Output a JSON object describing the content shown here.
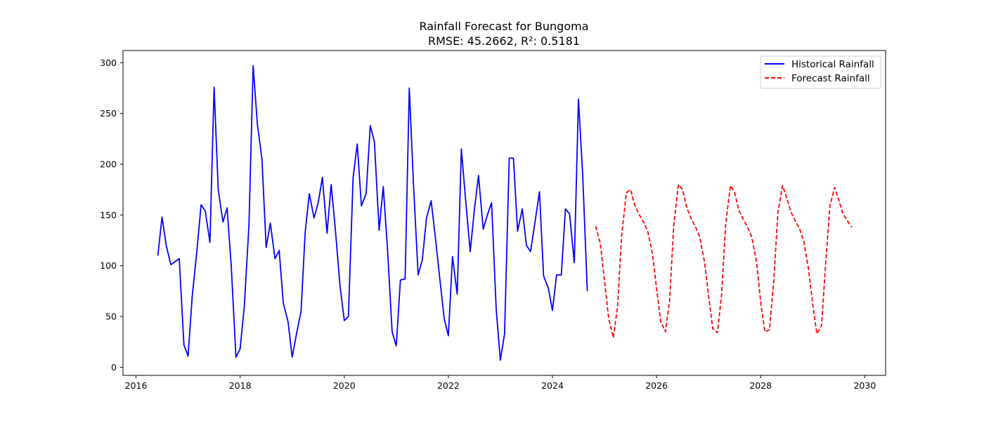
{
  "chart_data": {
    "type": "line",
    "title": "Rainfall Forecast for Bungoma",
    "subtitle": "RMSE: 45.2662, R²: 0.5181",
    "xlabel": "",
    "ylabel": "",
    "xlim": [
      2015.75,
      2030.4
    ],
    "ylim": [
      -8,
      312
    ],
    "x_ticks": [
      "2016",
      "2018",
      "2020",
      "2022",
      "2024",
      "2026",
      "2028",
      "2030"
    ],
    "y_ticks": [
      "0",
      "50",
      "100",
      "150",
      "200",
      "250",
      "300"
    ],
    "grid": false,
    "legend_position": "top-right",
    "series": [
      {
        "name": "Historical Rainfall",
        "color": "#0000ff",
        "style": "solid",
        "x": [
          2016.42,
          2016.5,
          2016.58,
          2016.67,
          2016.75,
          2016.83,
          2016.92,
          2017.0,
          2017.08,
          2017.17,
          2017.25,
          2017.33,
          2017.42,
          2017.5,
          2017.58,
          2017.67,
          2017.75,
          2017.83,
          2017.92,
          2018.0,
          2018.08,
          2018.17,
          2018.25,
          2018.33,
          2018.42,
          2018.5,
          2018.58,
          2018.67,
          2018.75,
          2018.83,
          2018.92,
          2019.0,
          2019.08,
          2019.17,
          2019.25,
          2019.33,
          2019.42,
          2019.5,
          2019.58,
          2019.67,
          2019.75,
          2019.83,
          2019.92,
          2020.0,
          2020.08,
          2020.17,
          2020.25,
          2020.33,
          2020.42,
          2020.5,
          2020.58,
          2020.67,
          2020.75,
          2020.83,
          2020.92,
          2021.0,
          2021.08,
          2021.17,
          2021.25,
          2021.33,
          2021.42,
          2021.5,
          2021.58,
          2021.67,
          2021.75,
          2021.83,
          2021.92,
          2022.0,
          2022.08,
          2022.17,
          2022.25,
          2022.33,
          2022.42,
          2022.5,
          2022.58,
          2022.67,
          2022.75,
          2022.83,
          2022.92,
          2023.0,
          2023.08,
          2023.17,
          2023.25,
          2023.33,
          2023.42,
          2023.5,
          2023.58,
          2023.67,
          2023.75,
          2023.83,
          2023.92,
          2024.0,
          2024.08,
          2024.17,
          2024.25,
          2024.33,
          2024.42,
          2024.5,
          2024.58,
          2024.67
        ],
        "values": [
          110,
          148,
          120,
          101,
          104,
          107,
          22,
          11,
          70,
          115,
          160,
          154,
          123,
          276,
          175,
          143,
          157,
          100,
          10,
          18,
          60,
          140,
          297,
          240,
          205,
          118,
          142,
          107,
          115,
          63,
          45,
          10,
          32,
          55,
          133,
          171,
          147,
          162,
          187,
          132,
          180,
          135,
          80,
          46,
          50,
          187,
          220,
          159,
          171,
          238,
          222,
          135,
          178,
          118,
          35,
          21,
          86,
          87,
          275,
          180,
          91,
          106,
          147,
          164,
          128,
          90,
          48,
          31,
          109,
          72,
          215,
          166,
          114,
          155,
          189,
          136,
          150,
          162,
          57,
          7,
          33,
          206,
          206,
          134,
          156,
          120,
          114,
          145,
          173,
          90,
          78,
          56,
          91,
          91,
          156,
          151,
          103,
          264,
          190,
          75
        ]
      },
      {
        "name": "Forecast Rainfall",
        "color": "#ff0000",
        "style": "dashed",
        "x": [
          2024.83,
          2024.92,
          2025.0,
          2025.08,
          2025.17,
          2025.25,
          2025.33,
          2025.42,
          2025.5,
          2025.58,
          2025.67,
          2025.75,
          2025.83,
          2025.92,
          2026.0,
          2026.08,
          2026.17,
          2026.25,
          2026.33,
          2026.42,
          2026.5,
          2026.58,
          2026.67,
          2026.75,
          2026.83,
          2026.92,
          2027.0,
          2027.08,
          2027.17,
          2027.25,
          2027.33,
          2027.42,
          2027.5,
          2027.58,
          2027.67,
          2027.75,
          2027.83,
          2027.92,
          2028.0,
          2028.08,
          2028.17,
          2028.25,
          2028.33,
          2028.42,
          2028.5,
          2028.58,
          2028.67,
          2028.75,
          2028.83,
          2028.92,
          2029.0,
          2029.08,
          2029.17,
          2029.25,
          2029.33,
          2029.42,
          2029.5,
          2029.58,
          2029.67,
          2029.75
        ],
        "values": [
          139,
          122,
          85,
          48,
          29,
          60,
          130,
          172,
          175,
          160,
          150,
          143,
          134,
          112,
          78,
          45,
          35,
          65,
          140,
          180,
          175,
          157,
          146,
          138,
          128,
          104,
          70,
          38,
          34,
          72,
          142,
          179,
          172,
          155,
          145,
          138,
          128,
          104,
          64,
          35,
          37,
          84,
          152,
          179,
          167,
          153,
          144,
          136,
          124,
          96,
          62,
          33,
          41,
          103,
          159,
          177,
          165,
          151,
          144,
          138
        ]
      }
    ]
  }
}
